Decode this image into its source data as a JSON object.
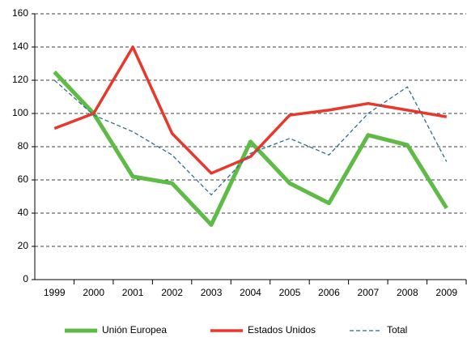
{
  "chart_data": {
    "type": "line",
    "categories": [
      "1999",
      "2000",
      "2001",
      "2002",
      "2003",
      "2004",
      "2005",
      "2006",
      "2007",
      "2008",
      "2009"
    ],
    "series": [
      {
        "name": "Unión Europea",
        "color": "#5dbb46",
        "values": [
          125,
          100,
          62,
          58,
          33,
          83,
          58,
          46,
          87,
          81,
          43
        ]
      },
      {
        "name": "Estados Unidos",
        "color": "#e8372b",
        "values": [
          91,
          100,
          140,
          88,
          64,
          74,
          99,
          102,
          106,
          102,
          98
        ]
      },
      {
        "name": "Total",
        "color": "#2f6f8f",
        "values": [
          120,
          99,
          89,
          75,
          51,
          76,
          85,
          75,
          100,
          116,
          71
        ]
      }
    ],
    "ylim": [
      0,
      160
    ],
    "yticks": [
      0,
      20,
      40,
      60,
      80,
      100,
      120,
      140,
      160
    ],
    "grid": true,
    "legend": "bottom"
  }
}
